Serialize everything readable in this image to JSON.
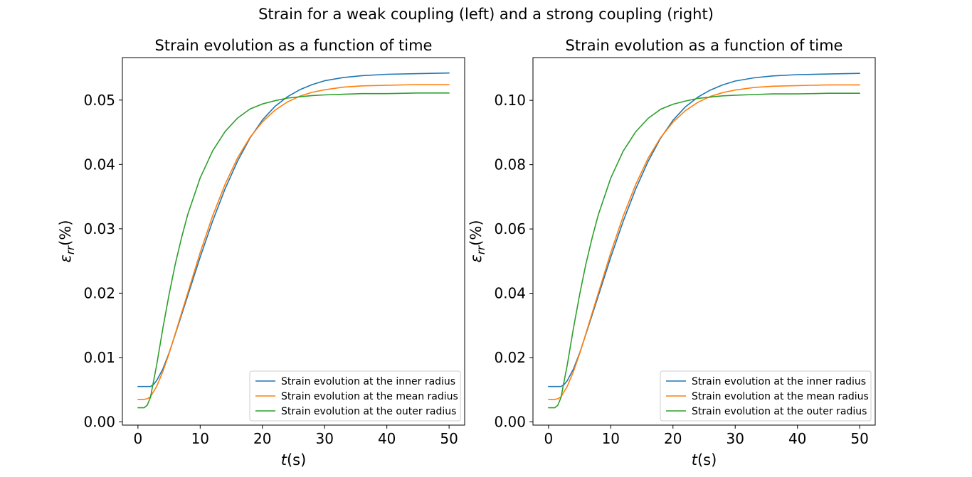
{
  "figure": {
    "suptitle": "Strain for a weak coupling (left) and a strong coupling (right)"
  },
  "colors": {
    "inner": "#1f77b4",
    "mean": "#ff7f0e",
    "outer": "#2ca02c"
  },
  "chart_data": [
    {
      "type": "line",
      "title": "Strain evolution as a function of time",
      "xlabel_main": "t",
      "xlabel_unit": "(s)",
      "ylabel_main": "ε",
      "ylabel_sub": "rr",
      "ylabel_unit": "(%)",
      "xlim": [
        -2.5,
        52.5
      ],
      "ylim": [
        -0.0005,
        0.0566
      ],
      "xticks": [
        0,
        10,
        20,
        30,
        40,
        50
      ],
      "xtick_labels": [
        "0",
        "10",
        "20",
        "30",
        "40",
        "50"
      ],
      "yticks": [
        0.0,
        0.01,
        0.02,
        0.03,
        0.04,
        0.05
      ],
      "ytick_labels": [
        "0.00",
        "0.01",
        "0.02",
        "0.03",
        "0.04",
        "0.05"
      ],
      "grid": false,
      "legend_position": "lower right",
      "series": [
        {
          "name": "Strain evolution at the inner radius",
          "color_key": "inner",
          "x": [
            0,
            1,
            2,
            2.5,
            3,
            4,
            5,
            6,
            7,
            8,
            10,
            12,
            14,
            16,
            18,
            20,
            22,
            24,
            26,
            28,
            30,
            33,
            36,
            40,
            45,
            50
          ],
          "y": [
            0.0055,
            0.0055,
            0.0055,
            0.0058,
            0.0064,
            0.0082,
            0.0107,
            0.0136,
            0.0166,
            0.0196,
            0.0256,
            0.0312,
            0.0362,
            0.0405,
            0.0441,
            0.0469,
            0.049,
            0.0505,
            0.0516,
            0.0524,
            0.053,
            0.0535,
            0.0538,
            0.054,
            0.0541,
            0.0542
          ]
        },
        {
          "name": "Strain evolution at the mean radius",
          "color_key": "mean",
          "x": [
            0,
            1,
            1.5,
            2,
            3,
            4,
            5,
            6,
            7,
            8,
            10,
            12,
            14,
            16,
            18,
            20,
            22,
            24,
            26,
            28,
            30,
            33,
            36,
            40,
            45,
            50
          ],
          "y": [
            0.0035,
            0.0035,
            0.0036,
            0.0039,
            0.0055,
            0.0078,
            0.0106,
            0.0137,
            0.0169,
            0.02,
            0.0263,
            0.032,
            0.0369,
            0.041,
            0.0442,
            0.0466,
            0.0484,
            0.0497,
            0.0506,
            0.0512,
            0.0516,
            0.052,
            0.0522,
            0.0523,
            0.0524,
            0.0524
          ]
        },
        {
          "name": "Strain evolution at the outer radius",
          "color_key": "outer",
          "x": [
            0,
            1,
            1.5,
            2,
            3,
            4,
            5,
            6,
            7,
            8,
            10,
            12,
            14,
            16,
            18,
            20,
            22,
            24,
            26,
            28,
            30,
            33,
            36,
            40,
            45,
            50
          ],
          "y": [
            0.0022,
            0.0022,
            0.0026,
            0.0038,
            0.0088,
            0.0145,
            0.0198,
            0.0245,
            0.0286,
            0.0322,
            0.0379,
            0.0421,
            0.0451,
            0.0472,
            0.0486,
            0.0494,
            0.0499,
            0.0503,
            0.0505,
            0.0507,
            0.0508,
            0.0509,
            0.051,
            0.051,
            0.0511,
            0.0511
          ]
        }
      ]
    },
    {
      "type": "line",
      "title": "Strain evolution as a function of time",
      "xlabel_main": "t",
      "xlabel_unit": "(s)",
      "ylabel_main": "ε",
      "ylabel_sub": "rr",
      "ylabel_unit": "(%)",
      "xlim": [
        -2.5,
        52.5
      ],
      "ylim": [
        -0.001,
        0.1133
      ],
      "xticks": [
        0,
        10,
        20,
        30,
        40,
        50
      ],
      "xtick_labels": [
        "0",
        "10",
        "20",
        "30",
        "40",
        "50"
      ],
      "yticks": [
        0.0,
        0.02,
        0.04,
        0.06,
        0.08,
        0.1
      ],
      "ytick_labels": [
        "0.00",
        "0.02",
        "0.04",
        "0.06",
        "0.08",
        "0.10"
      ],
      "grid": false,
      "legend_position": "lower right",
      "series": [
        {
          "name": "Strain evolution at the inner radius",
          "color_key": "inner",
          "x": [
            0,
            1,
            2,
            2.5,
            3,
            4,
            5,
            6,
            7,
            8,
            10,
            12,
            14,
            16,
            18,
            20,
            22,
            24,
            26,
            28,
            30,
            33,
            36,
            40,
            45,
            50
          ],
          "y": [
            0.011,
            0.011,
            0.011,
            0.0116,
            0.0128,
            0.0164,
            0.0214,
            0.0272,
            0.0332,
            0.0392,
            0.0512,
            0.0624,
            0.0724,
            0.081,
            0.0882,
            0.0938,
            0.098,
            0.101,
            0.1032,
            0.1048,
            0.106,
            0.107,
            0.1076,
            0.108,
            0.1082,
            0.1084
          ]
        },
        {
          "name": "Strain evolution at the mean radius",
          "color_key": "mean",
          "x": [
            0,
            1,
            1.5,
            2,
            3,
            4,
            5,
            6,
            7,
            8,
            10,
            12,
            14,
            16,
            18,
            20,
            22,
            24,
            26,
            28,
            30,
            33,
            36,
            40,
            45,
            50
          ],
          "y": [
            0.007,
            0.007,
            0.0072,
            0.0078,
            0.011,
            0.0156,
            0.0212,
            0.0274,
            0.0338,
            0.04,
            0.0526,
            0.064,
            0.0738,
            0.082,
            0.0884,
            0.0932,
            0.0968,
            0.0994,
            0.1012,
            0.1024,
            0.1032,
            0.104,
            0.1044,
            0.1046,
            0.1048,
            0.1048
          ]
        },
        {
          "name": "Strain evolution at the outer radius",
          "color_key": "outer",
          "x": [
            0,
            1,
            1.5,
            2,
            3,
            4,
            5,
            6,
            7,
            8,
            10,
            12,
            14,
            16,
            18,
            20,
            22,
            24,
            26,
            28,
            30,
            33,
            36,
            40,
            45,
            50
          ],
          "y": [
            0.0044,
            0.0044,
            0.0052,
            0.0076,
            0.0176,
            0.029,
            0.0396,
            0.049,
            0.0572,
            0.0644,
            0.0758,
            0.0842,
            0.0902,
            0.0944,
            0.0972,
            0.0988,
            0.0998,
            0.1006,
            0.101,
            0.1014,
            0.1016,
            0.1018,
            0.102,
            0.102,
            0.1022,
            0.1022
          ]
        }
      ]
    }
  ]
}
